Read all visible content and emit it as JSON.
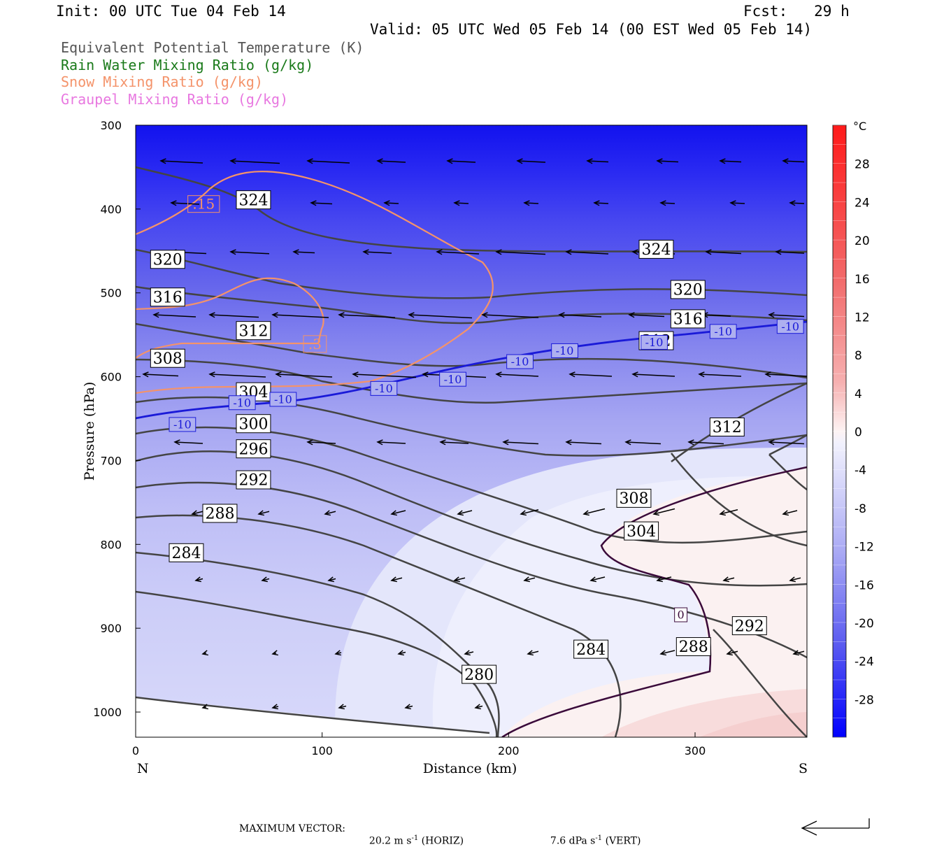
{
  "header": {
    "init": "Init: 00 UTC Tue 04 Feb 14",
    "fcst": "Fcst:   29 h",
    "valid": "Valid: 05 UTC Wed 05 Feb 14 (00 EST Wed 05 Feb 14)"
  },
  "legend": [
    {
      "label": "Equivalent Potential Temperature (K)",
      "color": "#555555"
    },
    {
      "label": "Rain Water Mixing Ratio (g/kg)",
      "color": "#1a7a1a"
    },
    {
      "label": "Snow Mixing Ratio (g/kg)",
      "color": "#f4936a"
    },
    {
      "label": "Graupel Mixing Ratio (g/kg)",
      "color": "#e878e0"
    }
  ],
  "footer": {
    "max_vector_label": "MAXIMUM VECTOR:",
    "horiz_value": "20.2",
    "horiz_unit": "m s",
    "horiz_exp": "-1",
    "horiz_tag": "(HORIZ)",
    "vert_value": "7.6",
    "vert_unit": "dPa s",
    "vert_exp": "-1",
    "vert_tag": "(VERT)"
  },
  "chart_data": {
    "type": "cross-section",
    "xlabel": "Distance (km)",
    "ylabel": "Pressure (hPa)",
    "xlim": [
      0,
      360
    ],
    "ylim": [
      1030,
      300
    ],
    "x_ticks": [
      0,
      100,
      200,
      300
    ],
    "y_ticks": [
      300,
      400,
      500,
      600,
      700,
      800,
      900,
      1000
    ],
    "x_end_labels": {
      "left": "N",
      "right": "S"
    },
    "colorbar": {
      "unit": "°C",
      "ticks": [
        28,
        24,
        20,
        16,
        12,
        8,
        4,
        0,
        -4,
        -8,
        -12,
        -16,
        -20,
        -24,
        -28
      ],
      "range": [
        -32,
        32
      ]
    },
    "theta_e_contours": [
      {
        "value": 280,
        "label_at": [
          175,
          955
        ]
      },
      {
        "value": 284,
        "label_at": [
          18,
          810
        ],
        "label2_at": [
          235,
          925
        ]
      },
      {
        "value": 288,
        "label_at": [
          36,
          763
        ],
        "label2_at": [
          290,
          922
        ]
      },
      {
        "value": 292,
        "label_at": [
          54,
          723
        ],
        "label2_at": [
          320,
          897
        ]
      },
      {
        "value": 296,
        "label_at": [
          54,
          686
        ]
      },
      {
        "value": 300,
        "label_at": [
          54,
          656
        ]
      },
      {
        "value": 304,
        "label_at": [
          54,
          618
        ],
        "label2_at": [
          262,
          784
        ]
      },
      {
        "value": 308,
        "label_at": [
          8,
          578
        ],
        "label2_at": [
          258,
          745
        ]
      },
      {
        "value": 312,
        "label_at": [
          54,
          545
        ],
        "label2_at": [
          270,
          557
        ],
        "label3_at": [
          308,
          660
        ]
      },
      {
        "value": 316,
        "label_at": [
          8,
          505
        ],
        "label2_at": [
          287,
          531
        ]
      },
      {
        "value": 320,
        "label_at": [
          8,
          460
        ],
        "label2_at": [
          287,
          496
        ]
      },
      {
        "value": 324,
        "label_at": [
          54,
          389
        ],
        "label2_at": [
          270,
          448
        ]
      }
    ],
    "isotherm_labels": [
      {
        "value": "-10",
        "at": [
          18,
          657
        ]
      },
      {
        "value": "-10",
        "at": [
          50,
          631
        ]
      },
      {
        "value": "-10",
        "at": [
          72,
          627
        ]
      },
      {
        "value": "-10",
        "at": [
          126,
          614
        ]
      },
      {
        "value": "-10",
        "at": [
          163,
          603
        ]
      },
      {
        "value": "-10",
        "at": [
          199,
          582
        ]
      },
      {
        "value": "-10",
        "at": [
          223,
          569
        ]
      },
      {
        "value": "-10",
        "at": [
          271,
          559
        ]
      },
      {
        "value": "-10",
        "at": [
          308,
          546
        ]
      },
      {
        "value": "-10",
        "at": [
          344,
          540
        ]
      },
      {
        "value": "0",
        "at": [
          289,
          884
        ]
      }
    ],
    "snow_labels": [
      {
        "value": ".15",
        "at": [
          28,
          394
        ]
      },
      {
        "value": ".3",
        "at": [
          90,
          561
        ]
      }
    ]
  }
}
